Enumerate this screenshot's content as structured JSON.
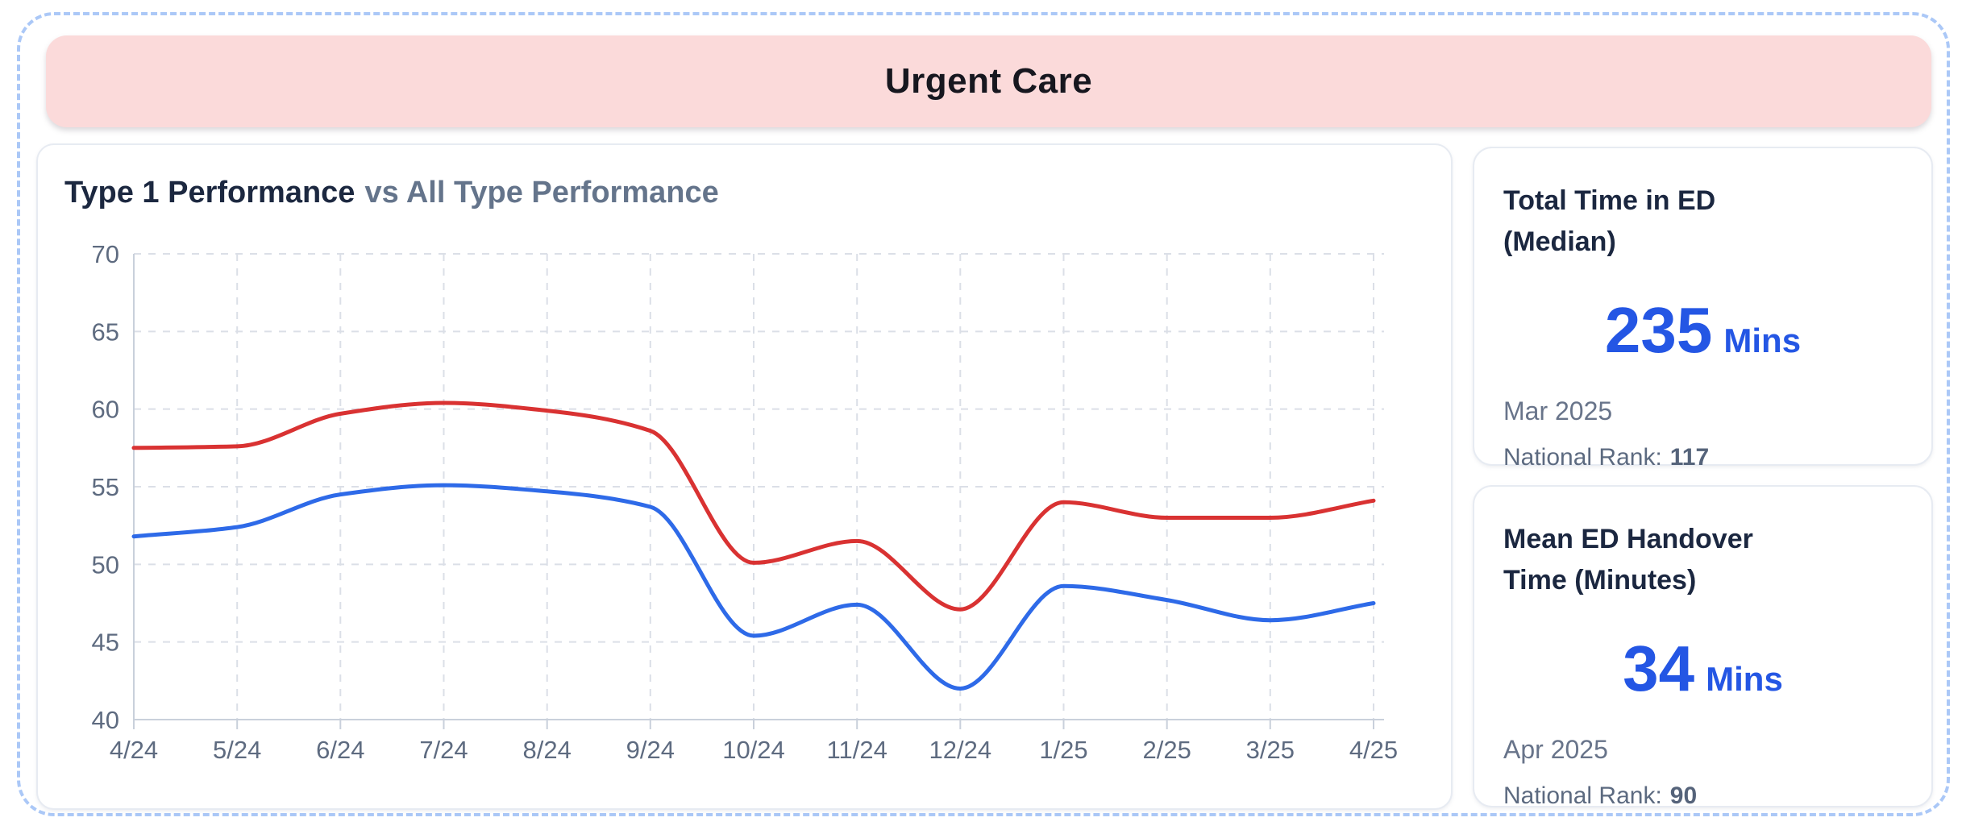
{
  "header": {
    "title": "Urgent Care"
  },
  "chart": {
    "title_primary": "Type 1 Performance",
    "title_secondary": "vs All Type Performance"
  },
  "chart_data": {
    "type": "line",
    "title": "Type 1 Performance vs All Type Performance",
    "categories": [
      "4/24",
      "5/24",
      "6/24",
      "7/24",
      "8/24",
      "9/24",
      "10/24",
      "11/24",
      "12/24",
      "1/25",
      "2/25",
      "3/25",
      "4/25"
    ],
    "series": [
      {
        "name": "All Type Performance",
        "color": "#d93232",
        "values": [
          57.5,
          57.6,
          59.7,
          60.4,
          59.9,
          58.6,
          50.1,
          51.5,
          47.1,
          54.0,
          53.0,
          53.0,
          54.1
        ]
      },
      {
        "name": "Type 1 Performance",
        "color": "#2e6ae8",
        "values": [
          51.8,
          52.4,
          54.5,
          55.1,
          54.7,
          53.7,
          45.4,
          47.4,
          42.0,
          48.6,
          47.7,
          46.4,
          47.5
        ]
      }
    ],
    "ylim": [
      40,
      70
    ],
    "ytick_step": 5,
    "grid": "dashed",
    "legend": "none",
    "interpolation": "monotone-cubic"
  },
  "stat_cards": [
    {
      "title_line1": "Total Time in ED",
      "title_line2": "(Median)",
      "value": "235",
      "unit": "Mins",
      "period": "Mar 2025",
      "rank_label": "National Rank:",
      "rank_value": "117"
    },
    {
      "title_line1": "Mean ED Handover",
      "title_line2": "Time (Minutes)",
      "value": "34",
      "unit": "Mins",
      "period": "Apr 2025",
      "rank_label": "National Rank:",
      "rank_value": "90"
    }
  ],
  "colors": {
    "header_bg": "#fbdada",
    "dashed_border": "#abc8f7",
    "accent_blue": "#2456e4",
    "line_red": "#d93232",
    "line_blue": "#2e6ae8"
  }
}
